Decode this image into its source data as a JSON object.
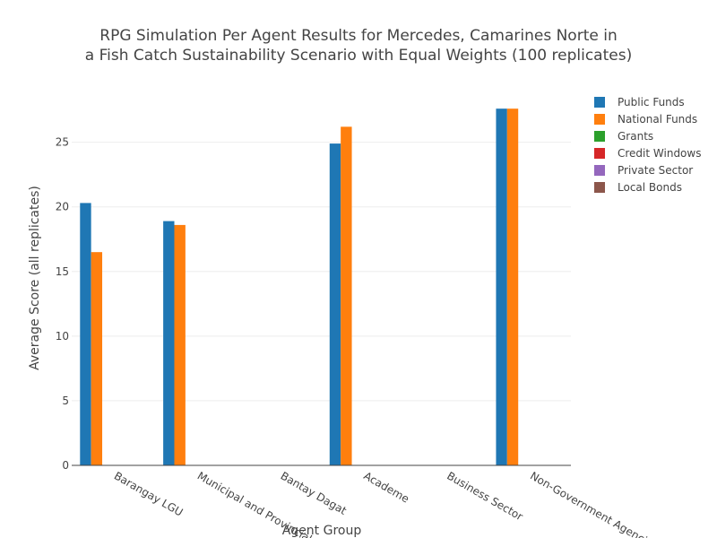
{
  "chart_data": {
    "type": "bar",
    "title": [
      "RPG Simulation Per Agent Results for Mercedes, Camarines Norte in",
      "a Fish Catch Sustainability Scenario with Equal Weights (100 replicates)"
    ],
    "x_label": "Agent Group",
    "y_label": "Average Score (all replicates)",
    "categories": [
      "Barangay LGU",
      "Municipal and Provincial",
      "Bantay Dagat",
      "Academe",
      "Business Sector",
      "Non-Government Agencies"
    ],
    "series": [
      {
        "name": "Public Funds",
        "color": "#1f77b4",
        "values": [
          20.3,
          18.9,
          0,
          24.9,
          0,
          27.6
        ]
      },
      {
        "name": "National Funds",
        "color": "#ff7f0e",
        "values": [
          16.5,
          18.6,
          0,
          26.2,
          0,
          27.6
        ]
      },
      {
        "name": "Grants",
        "color": "#2ca02c",
        "values": [
          0,
          0,
          0,
          0,
          0,
          0
        ]
      },
      {
        "name": "Credit Windows",
        "color": "#d62728",
        "values": [
          0,
          0,
          0,
          0,
          0,
          0
        ]
      },
      {
        "name": "Private Sector",
        "color": "#9467bd",
        "values": [
          0,
          0,
          0,
          0,
          0,
          0
        ]
      },
      {
        "name": "Local Bonds",
        "color": "#8c564b",
        "values": [
          0,
          0,
          0,
          0,
          0,
          0
        ]
      }
    ],
    "ylim": [
      0,
      29
    ],
    "yticks": [
      0,
      5,
      10,
      15,
      20,
      25
    ],
    "grid": true,
    "legend": "right"
  }
}
